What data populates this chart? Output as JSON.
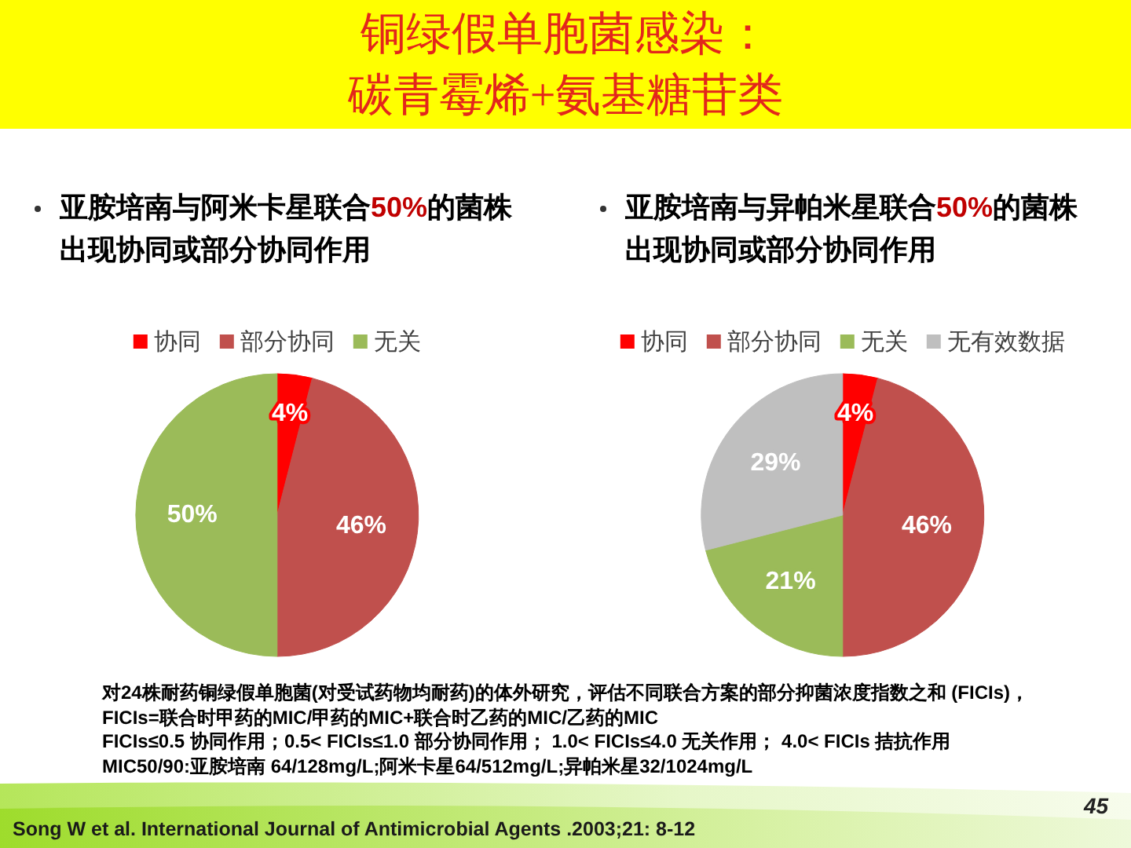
{
  "chart_data": [
    {
      "type": "other",
      "title": "铜绿假单胞菌感染：碳青霉烯+氨基糖苷类"
    },
    {
      "type": "pie",
      "title": "亚胺培南与阿米卡星联合50%的菌株出现协同或部分协同作用",
      "categories": [
        "协同",
        "部分协同",
        "无关"
      ],
      "values": [
        4,
        46,
        50
      ],
      "colors": [
        "#ff0000",
        "#c0504d",
        "#9bbb59"
      ],
      "value_labels": [
        "4%",
        "46%",
        "50%"
      ],
      "legend": "top"
    },
    {
      "type": "pie",
      "title": "亚胺培南与异帕米星联合50%的菌株出现协同或部分协同作用",
      "categories": [
        "协同",
        "部分协同",
        "无关",
        "无有效数据"
      ],
      "values": [
        4,
        46,
        21,
        29
      ],
      "colors": [
        "#ff0000",
        "#c0504d",
        "#9bbb59",
        "#bfbfbf"
      ],
      "value_labels": [
        "4%",
        "46%",
        "21%",
        "29%"
      ],
      "legend": "top"
    },
    {
      "type": "other",
      "annotations": [
        "对24株耐药铜绿假单胞菌(对受试药物均耐药)的体外研究，评估不同联合方案的部分抑菌浓度指数之和 (FICIs)，",
        "FICIs=联合时甲药的MIC/甲药的MIC+联合时乙药的MIC/乙药的MIC",
        "FICIs≤0.5 协同作用；0.5< FICIs≤1.0 部分协同作用； 1.0< FICIs≤4.0 无关作用； 4.0< FICIs 拮抗作用",
        "MIC50/90:亚胺培南 64/128mg/L;阿米卡星64/512mg/L;异帕米星32/1024mg/L",
        "Song W et al. International Journal of Antimicrobial Agents .2003;21: 8-12",
        "45"
      ]
    }
  ]
}
